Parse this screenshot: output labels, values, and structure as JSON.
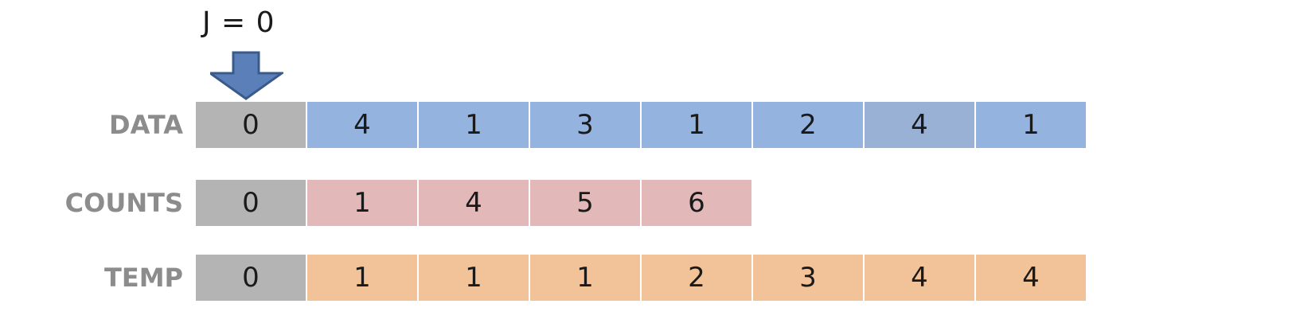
{
  "pointer": {
    "label": "J = 0",
    "index": 0
  },
  "rows": [
    {
      "label": "DATA",
      "values": [
        "0",
        "4",
        "1",
        "3",
        "1",
        "2",
        "4",
        "1"
      ],
      "color": "#95b3df",
      "highlight_index": 6,
      "highlight_color": "#9ab1d6"
    },
    {
      "label": "COUNTS",
      "values": [
        "0",
        "1",
        "4",
        "5",
        "6"
      ],
      "color": "#e2b8b8"
    },
    {
      "label": "TEMP",
      "values": [
        "0",
        "1",
        "1",
        "1",
        "2",
        "3",
        "4",
        "4"
      ],
      "color": "#f2c298"
    }
  ],
  "colors": {
    "first_cell": "#b4b4b4",
    "arrow_fill": "#5b80b9",
    "arrow_stroke": "#3a5a8c",
    "label_text": "#8c8c8c"
  }
}
